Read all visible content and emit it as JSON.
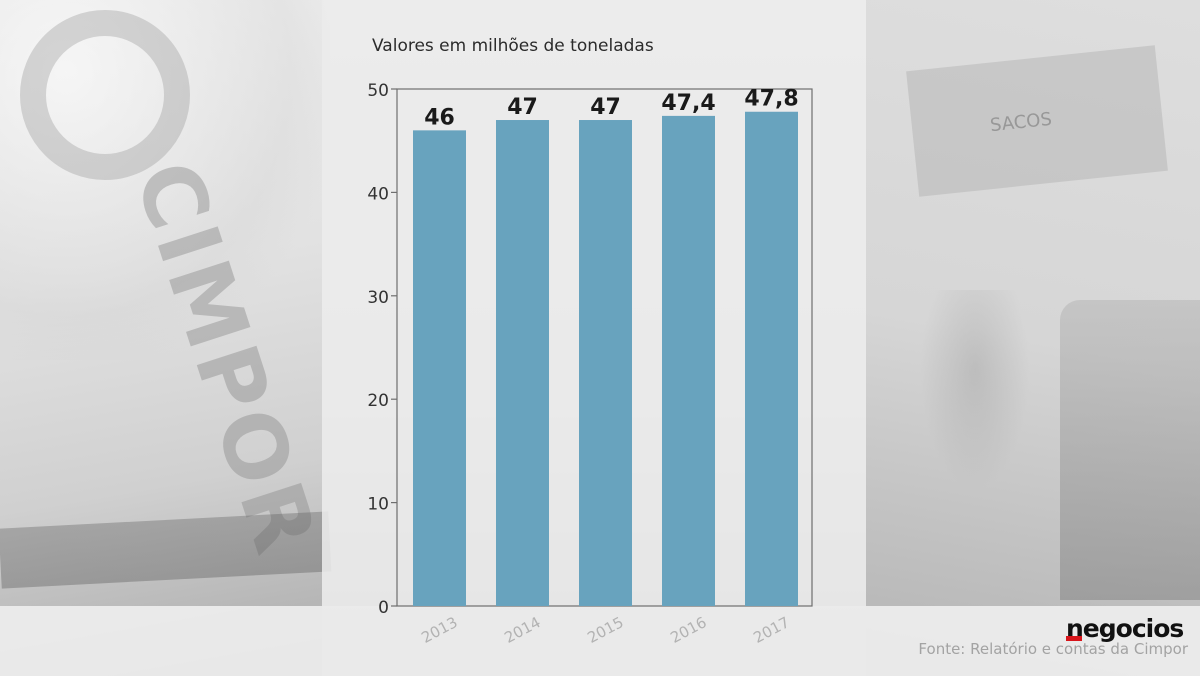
{
  "chart_data": {
    "type": "bar",
    "title": "Valores em milhões de toneladas",
    "categories": [
      "2013",
      "2014",
      "2015",
      "2016",
      "2017"
    ],
    "values": [
      46,
      47,
      47,
      47.4,
      47.8
    ],
    "value_labels": [
      "46",
      "47",
      "47",
      "47,4",
      "47,8"
    ],
    "ylim": [
      0,
      50
    ],
    "yticks": [
      0,
      10,
      20,
      30,
      40,
      50
    ],
    "ytick_labels": [
      "0",
      "10",
      "20",
      "30",
      "40",
      "50"
    ],
    "bar_color": "#68a3be",
    "grid": false
  },
  "brand": {
    "name": "negocios",
    "accent": "#d7141a"
  },
  "source": "Fonte: Relatório e contas da Cimpor",
  "background": {
    "photo_text": "CIMPOR",
    "sign_text": "SACOS"
  }
}
